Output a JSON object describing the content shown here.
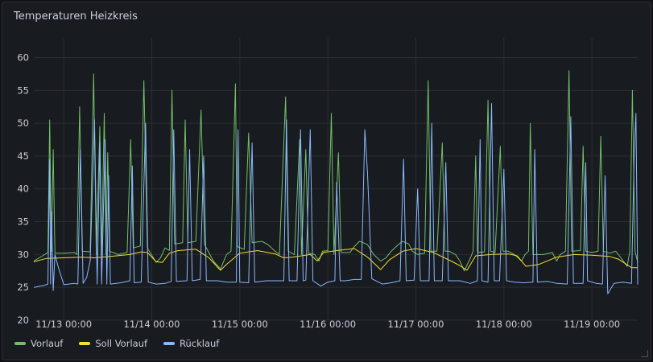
{
  "panel": {
    "title": "Temperaturen Heizkreis"
  },
  "chart_data": {
    "type": "line",
    "title": "Temperaturen Heizkreis",
    "xlabel": "",
    "ylabel": "",
    "x_tick_labels": [
      "11/13 00:00",
      "11/14 00:00",
      "11/15 00:00",
      "11/16 00:00",
      "11/17 00:00",
      "11/18 00:00",
      "11/19 00:00"
    ],
    "x_ticks": [
      1.0,
      2.0,
      3.0,
      4.0,
      5.0,
      6.0,
      7.0
    ],
    "xlim": [
      0.66,
      7.52
    ],
    "ylim": [
      20,
      63
    ],
    "y_ticks": [
      20,
      25,
      30,
      35,
      40,
      45,
      50,
      55,
      60
    ],
    "grid": true,
    "legend_position": "bottom-left",
    "series": [
      {
        "name": "Vorlauf",
        "color": "#73bf69",
        "points": [
          [
            0.66,
            29.0
          ],
          [
            0.76,
            29.8
          ],
          [
            0.82,
            30.3
          ],
          [
            0.84,
            50.5
          ],
          [
            0.86,
            30.5
          ],
          [
            0.88,
            46.0
          ],
          [
            0.9,
            30.2
          ],
          [
            1.0,
            30.2
          ],
          [
            1.12,
            30.3
          ],
          [
            1.15,
            30.0
          ],
          [
            1.18,
            52.5
          ],
          [
            1.21,
            30.5
          ],
          [
            1.3,
            30.4
          ],
          [
            1.34,
            57.5
          ],
          [
            1.37,
            30.0
          ],
          [
            1.41,
            49.5
          ],
          [
            1.43,
            30.0
          ],
          [
            1.46,
            51.5
          ],
          [
            1.48,
            30.0
          ],
          [
            1.5,
            45.5
          ],
          [
            1.52,
            30.5
          ],
          [
            1.62,
            30.0
          ],
          [
            1.72,
            30.3
          ],
          [
            1.76,
            47.5
          ],
          [
            1.79,
            31.0
          ],
          [
            1.87,
            31.3
          ],
          [
            1.91,
            56.5
          ],
          [
            1.95,
            31.0
          ],
          [
            2.05,
            28.8
          ],
          [
            2.1,
            29.5
          ],
          [
            2.15,
            31.0
          ],
          [
            2.2,
            30.6
          ],
          [
            2.23,
            55.0
          ],
          [
            2.26,
            31.6
          ],
          [
            2.35,
            31.8
          ],
          [
            2.38,
            50.5
          ],
          [
            2.41,
            31.8
          ],
          [
            2.5,
            32.0
          ],
          [
            2.56,
            52.0
          ],
          [
            2.6,
            31.5
          ],
          [
            2.7,
            29.0
          ],
          [
            2.78,
            27.8
          ],
          [
            2.85,
            30.0
          ],
          [
            2.9,
            30.5
          ],
          [
            2.95,
            56.0
          ],
          [
            2.97,
            31.2
          ],
          [
            3.05,
            30.8
          ],
          [
            3.1,
            48.5
          ],
          [
            3.14,
            31.8
          ],
          [
            3.25,
            32.0
          ],
          [
            3.32,
            31.5
          ],
          [
            3.4,
            30.5
          ],
          [
            3.45,
            30.0
          ],
          [
            3.52,
            54.0
          ],
          [
            3.55,
            30.5
          ],
          [
            3.62,
            30.0
          ],
          [
            3.68,
            47.5
          ],
          [
            3.7,
            30.0
          ],
          [
            3.75,
            46.0
          ],
          [
            3.78,
            30.2
          ],
          [
            3.85,
            30.0
          ],
          [
            3.9,
            29.0
          ],
          [
            3.94,
            30.5
          ],
          [
            4.0,
            30.6
          ],
          [
            4.04,
            51.5
          ],
          [
            4.07,
            30.0
          ],
          [
            4.12,
            45.5
          ],
          [
            4.15,
            30.3
          ],
          [
            4.25,
            30.3
          ],
          [
            4.3,
            31.2
          ],
          [
            4.36,
            32.0
          ],
          [
            4.4,
            31.8
          ],
          [
            4.45,
            31.5
          ],
          [
            4.52,
            30.0
          ],
          [
            4.6,
            29.0
          ],
          [
            4.66,
            29.5
          ],
          [
            4.72,
            30.5
          ],
          [
            4.8,
            31.5
          ],
          [
            4.85,
            32.0
          ],
          [
            4.92,
            31.6
          ],
          [
            4.96,
            30.5
          ],
          [
            5.02,
            30.0
          ],
          [
            5.1,
            30.2
          ],
          [
            5.14,
            56.5
          ],
          [
            5.17,
            30.5
          ],
          [
            5.24,
            30.5
          ],
          [
            5.3,
            47.0
          ],
          [
            5.33,
            30.5
          ],
          [
            5.38,
            30.5
          ],
          [
            5.45,
            30.0
          ],
          [
            5.5,
            29.0
          ],
          [
            5.55,
            27.5
          ],
          [
            5.62,
            29.5
          ],
          [
            5.65,
            30.5
          ],
          [
            5.68,
            45.0
          ],
          [
            5.7,
            30.3
          ],
          [
            5.78,
            30.4
          ],
          [
            5.82,
            53.5
          ],
          [
            5.85,
            30.5
          ],
          [
            5.9,
            30.3
          ],
          [
            5.96,
            46.5
          ],
          [
            5.99,
            30.5
          ],
          [
            6.05,
            30.5
          ],
          [
            6.12,
            30.0
          ],
          [
            6.2,
            29.0
          ],
          [
            6.24,
            30.0
          ],
          [
            6.28,
            30.5
          ],
          [
            6.3,
            50.0
          ],
          [
            6.33,
            30.0
          ],
          [
            6.45,
            30.0
          ],
          [
            6.55,
            30.3
          ],
          [
            6.6,
            29.0
          ],
          [
            6.64,
            30.0
          ],
          [
            6.7,
            30.5
          ],
          [
            6.74,
            58.0
          ],
          [
            6.77,
            30.5
          ],
          [
            6.87,
            30.6
          ],
          [
            6.9,
            46.5
          ],
          [
            6.93,
            30.5
          ],
          [
            7.0,
            30.3
          ],
          [
            7.07,
            30.5
          ],
          [
            7.1,
            48.0
          ],
          [
            7.13,
            30.5
          ],
          [
            7.2,
            30.2
          ],
          [
            7.27,
            30.5
          ],
          [
            7.33,
            29.5
          ],
          [
            7.4,
            28.2
          ],
          [
            7.43,
            30.5
          ],
          [
            7.46,
            55.0
          ],
          [
            7.49,
            30.5
          ],
          [
            7.52,
            28.8
          ]
        ]
      },
      {
        "name": "Soll Vorlauf",
        "color": "#fade2a",
        "points": [
          [
            0.66,
            28.9
          ],
          [
            0.8,
            29.4
          ],
          [
            1.0,
            29.5
          ],
          [
            1.2,
            29.6
          ],
          [
            1.35,
            29.5
          ],
          [
            1.6,
            29.8
          ],
          [
            1.75,
            30.0
          ],
          [
            1.88,
            30.4
          ],
          [
            1.95,
            30.3
          ],
          [
            2.05,
            28.9
          ],
          [
            2.12,
            28.8
          ],
          [
            2.2,
            30.2
          ],
          [
            2.3,
            30.6
          ],
          [
            2.5,
            30.8
          ],
          [
            2.65,
            29.5
          ],
          [
            2.78,
            27.6
          ],
          [
            2.85,
            28.5
          ],
          [
            3.0,
            30.2
          ],
          [
            3.2,
            30.6
          ],
          [
            3.4,
            30.1
          ],
          [
            3.5,
            29.5
          ],
          [
            3.6,
            29.6
          ],
          [
            3.8,
            30.0
          ],
          [
            3.88,
            29.0
          ],
          [
            3.95,
            30.3
          ],
          [
            4.1,
            30.6
          ],
          [
            4.3,
            30.9
          ],
          [
            4.45,
            29.6
          ],
          [
            4.6,
            27.7
          ],
          [
            4.7,
            29.2
          ],
          [
            4.85,
            30.5
          ],
          [
            5.0,
            30.9
          ],
          [
            5.2,
            30.3
          ],
          [
            5.4,
            29.0
          ],
          [
            5.5,
            28.3
          ],
          [
            5.58,
            27.6
          ],
          [
            5.68,
            29.8
          ],
          [
            5.85,
            30.0
          ],
          [
            6.05,
            30.1
          ],
          [
            6.15,
            29.8
          ],
          [
            6.25,
            28.2
          ],
          [
            6.4,
            28.5
          ],
          [
            6.6,
            29.6
          ],
          [
            6.8,
            30.0
          ],
          [
            7.0,
            29.9
          ],
          [
            7.2,
            29.7
          ],
          [
            7.3,
            29.3
          ],
          [
            7.45,
            28.0
          ],
          [
            7.52,
            28.0
          ]
        ]
      },
      {
        "name": "Rücklauf",
        "color": "#8ab8ff",
        "points": [
          [
            0.66,
            25.0
          ],
          [
            0.78,
            25.3
          ],
          [
            0.82,
            25.5
          ],
          [
            0.84,
            44.5
          ],
          [
            0.85,
            25.5
          ],
          [
            0.86,
            36.5
          ],
          [
            0.88,
            24.5
          ],
          [
            0.9,
            30.0
          ],
          [
            0.94,
            28.0
          ],
          [
            1.0,
            25.4
          ],
          [
            1.12,
            25.6
          ],
          [
            1.16,
            25.5
          ],
          [
            1.19,
            46.0
          ],
          [
            1.22,
            25.6
          ],
          [
            1.26,
            26.5
          ],
          [
            1.3,
            29.0
          ],
          [
            1.35,
            50.5
          ],
          [
            1.38,
            25.5
          ],
          [
            1.41,
            47.0
          ],
          [
            1.43,
            25.5
          ],
          [
            1.47,
            47.5
          ],
          [
            1.49,
            25.5
          ],
          [
            1.51,
            42.0
          ],
          [
            1.53,
            25.5
          ],
          [
            1.65,
            25.7
          ],
          [
            1.75,
            26.0
          ],
          [
            1.78,
            43.5
          ],
          [
            1.8,
            25.7
          ],
          [
            1.88,
            25.8
          ],
          [
            1.93,
            50.0
          ],
          [
            1.96,
            25.8
          ],
          [
            2.05,
            25.5
          ],
          [
            2.15,
            25.6
          ],
          [
            2.22,
            25.9
          ],
          [
            2.25,
            49.0
          ],
          [
            2.28,
            25.9
          ],
          [
            2.4,
            26.0
          ],
          [
            2.43,
            46.0
          ],
          [
            2.46,
            26.0
          ],
          [
            2.55,
            26.2
          ],
          [
            2.59,
            45.0
          ],
          [
            2.62,
            26.0
          ],
          [
            2.75,
            26.0
          ],
          [
            2.85,
            25.8
          ],
          [
            2.96,
            25.8
          ],
          [
            2.98,
            49.0
          ],
          [
            3.0,
            25.8
          ],
          [
            3.1,
            25.7
          ],
          [
            3.14,
            47.0
          ],
          [
            3.17,
            25.8
          ],
          [
            3.3,
            26.0
          ],
          [
            3.5,
            26.0
          ],
          [
            3.53,
            50.5
          ],
          [
            3.55,
            34.0
          ],
          [
            3.56,
            26.0
          ],
          [
            3.65,
            26.0
          ],
          [
            3.69,
            49.0
          ],
          [
            3.72,
            26.0
          ],
          [
            3.75,
            26.1
          ],
          [
            3.8,
            49.0
          ],
          [
            3.83,
            26.0
          ],
          [
            3.92,
            25.2
          ],
          [
            4.0,
            25.8
          ],
          [
            4.08,
            26.0
          ],
          [
            4.1,
            41.0
          ],
          [
            4.14,
            26.0
          ],
          [
            4.2,
            26.0
          ],
          [
            4.3,
            26.2
          ],
          [
            4.38,
            26.2
          ],
          [
            4.42,
            49.0
          ],
          [
            4.45,
            42.5
          ],
          [
            4.5,
            26.3
          ],
          [
            4.62,
            25.5
          ],
          [
            4.72,
            25.7
          ],
          [
            4.82,
            26.0
          ],
          [
            4.86,
            44.5
          ],
          [
            4.89,
            26.0
          ],
          [
            4.98,
            26.1
          ],
          [
            5.02,
            40.0
          ],
          [
            5.05,
            26.0
          ],
          [
            5.15,
            26.0
          ],
          [
            5.18,
            50.0
          ],
          [
            5.21,
            26.0
          ],
          [
            5.3,
            26.0
          ],
          [
            5.34,
            44.0
          ],
          [
            5.37,
            26.0
          ],
          [
            5.5,
            26.0
          ],
          [
            5.62,
            25.6
          ],
          [
            5.7,
            26.0
          ],
          [
            5.73,
            47.5
          ],
          [
            5.75,
            26.0
          ],
          [
            5.82,
            25.8
          ],
          [
            5.86,
            53.0
          ],
          [
            5.89,
            26.0
          ],
          [
            5.95,
            26.0
          ],
          [
            6.0,
            43.0
          ],
          [
            6.03,
            26.0
          ],
          [
            6.12,
            25.8
          ],
          [
            6.22,
            25.7
          ],
          [
            6.33,
            25.8
          ],
          [
            6.35,
            46.0
          ],
          [
            6.38,
            25.8
          ],
          [
            6.5,
            25.9
          ],
          [
            6.6,
            25.6
          ],
          [
            6.72,
            25.5
          ],
          [
            6.76,
            51.0
          ],
          [
            6.79,
            25.6
          ],
          [
            6.9,
            25.6
          ],
          [
            6.93,
            44.0
          ],
          [
            6.95,
            26.0
          ],
          [
            7.05,
            25.6
          ],
          [
            7.12,
            25.5
          ],
          [
            7.15,
            42.0
          ],
          [
            7.18,
            24.0
          ],
          [
            7.25,
            25.6
          ],
          [
            7.35,
            25.8
          ],
          [
            7.45,
            25.6
          ],
          [
            7.48,
            45.0
          ],
          [
            7.5,
            51.5
          ],
          [
            7.52,
            25.4
          ]
        ]
      }
    ]
  },
  "legend": {
    "items": [
      {
        "label": "Vorlauf",
        "color": "#73bf69"
      },
      {
        "label": "Soll Vorlauf",
        "color": "#fade2a"
      },
      {
        "label": "Rücklauf",
        "color": "#8ab8ff"
      }
    ]
  }
}
